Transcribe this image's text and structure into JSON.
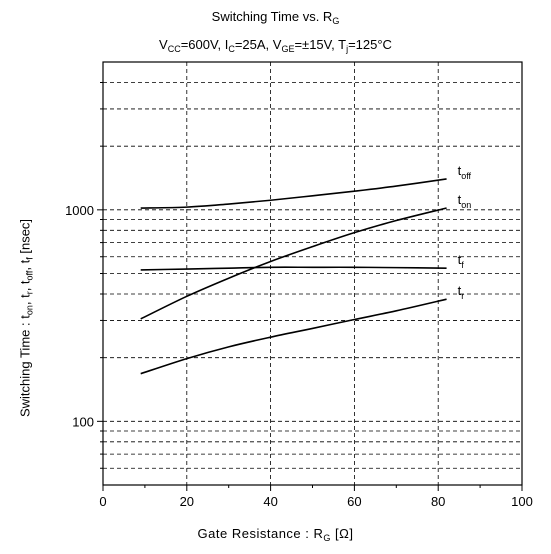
{
  "chart_data": {
    "type": "line",
    "title": {
      "prefix": "Switching Time vs. R",
      "sub": "G"
    },
    "subtitle": {
      "vcc": "V",
      "vcc_sub": "CC",
      "vcc_val": "=600V, ",
      "ic": "I",
      "ic_sub": "C",
      "ic_val": "=25A, ",
      "vge": "V",
      "vge_sub": "GE",
      "vge_val": "=±15V, ",
      "tj": "T",
      "tj_sub": "j",
      "tj_val": "=125°C"
    },
    "xlabel": {
      "prefix": "Gate Resistance  : R",
      "sub": "G",
      "suffix": "  [Ω]"
    },
    "ylabel": {
      "p1": "Switching Time : t",
      "s1": "on",
      "p2": ", t",
      "s2": "r",
      "p3": ", t",
      "s3": "off",
      "p4": ", t",
      "s4": "f",
      "p5": " [nsec]"
    },
    "xlim": [
      0,
      100
    ],
    "ylim": [
      50,
      5000
    ],
    "yscale": "log",
    "x_ticks": [
      0,
      20,
      40,
      60,
      80,
      100
    ],
    "x_tick_labels": [
      "0",
      "20",
      "40",
      "60",
      "80",
      "100"
    ],
    "y_tick_values": [
      100,
      1000
    ],
    "y_tick_labels": [
      "100",
      "1000"
    ],
    "grid": true,
    "series": [
      {
        "name": "t",
        "sub": "off",
        "x": [
          9,
          20,
          30,
          40,
          50,
          60,
          70,
          82
        ],
        "y": [
          1020,
          1030,
          1065,
          1110,
          1165,
          1225,
          1295,
          1400
        ]
      },
      {
        "name": "t",
        "sub": "on",
        "x": [
          9,
          20,
          30,
          40,
          50,
          60,
          70,
          82
        ],
        "y": [
          305,
          390,
          475,
          570,
          670,
          780,
          890,
          1020
        ]
      },
      {
        "name": "t",
        "sub": "f",
        "x": [
          9,
          20,
          30,
          40,
          50,
          60,
          70,
          82
        ],
        "y": [
          520,
          525,
          530,
          535,
          535,
          535,
          533,
          530
        ]
      },
      {
        "name": "t",
        "sub": "r",
        "x": [
          9,
          20,
          30,
          40,
          50,
          60,
          70,
          82
        ],
        "y": [
          168,
          198,
          225,
          250,
          275,
          303,
          333,
          378
        ]
      }
    ]
  }
}
